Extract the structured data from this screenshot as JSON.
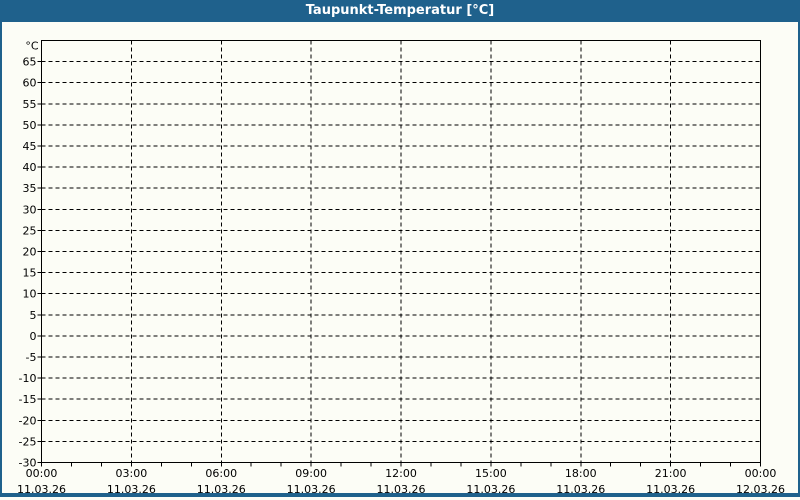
{
  "window": {
    "title": "Taupunkt-Temperatur [°C]"
  },
  "colors": {
    "titlebar_background": "#1F618C",
    "titlebar_text": "#FFFFFF",
    "page_border": "#1F618C",
    "background": "#FCFDF6",
    "axis": "#000000",
    "grid": "#000000",
    "label_text": "#000000"
  },
  "chart_data": {
    "type": "line",
    "title": "Taupunkt-Temperatur [°C]",
    "y_axis": {
      "unit_label": "°C",
      "min": -30,
      "max": 70,
      "tick_step": 5,
      "tick_labels": [
        "65",
        "60",
        "55",
        "50",
        "45",
        "40",
        "35",
        "30",
        "25",
        "20",
        "15",
        "10",
        "5",
        "0",
        "-5",
        "-10",
        "-15",
        "-20",
        "-25",
        "-30"
      ]
    },
    "x_axis": {
      "span_hours": 24,
      "minor_tick_every_hours": 1,
      "major_tick_every_hours": 3,
      "major_ticks": [
        {
          "hour": 0,
          "time": "00:00",
          "date": "11.03.26"
        },
        {
          "hour": 3,
          "time": "03:00",
          "date": "11.03.26"
        },
        {
          "hour": 6,
          "time": "06:00",
          "date": "11.03.26"
        },
        {
          "hour": 9,
          "time": "09:00",
          "date": "11.03.26"
        },
        {
          "hour": 12,
          "time": "12:00",
          "date": "11.03.26"
        },
        {
          "hour": 15,
          "time": "15:00",
          "date": "11.03.26"
        },
        {
          "hour": 18,
          "time": "18:00",
          "date": "11.03.26"
        },
        {
          "hour": 21,
          "time": "21:00",
          "date": "11.03.26"
        },
        {
          "hour": 24,
          "time": "00:00",
          "date": "12.03.26"
        }
      ]
    },
    "grid": {
      "style": "dashed",
      "horizontal": true,
      "vertical": true
    },
    "series": []
  }
}
